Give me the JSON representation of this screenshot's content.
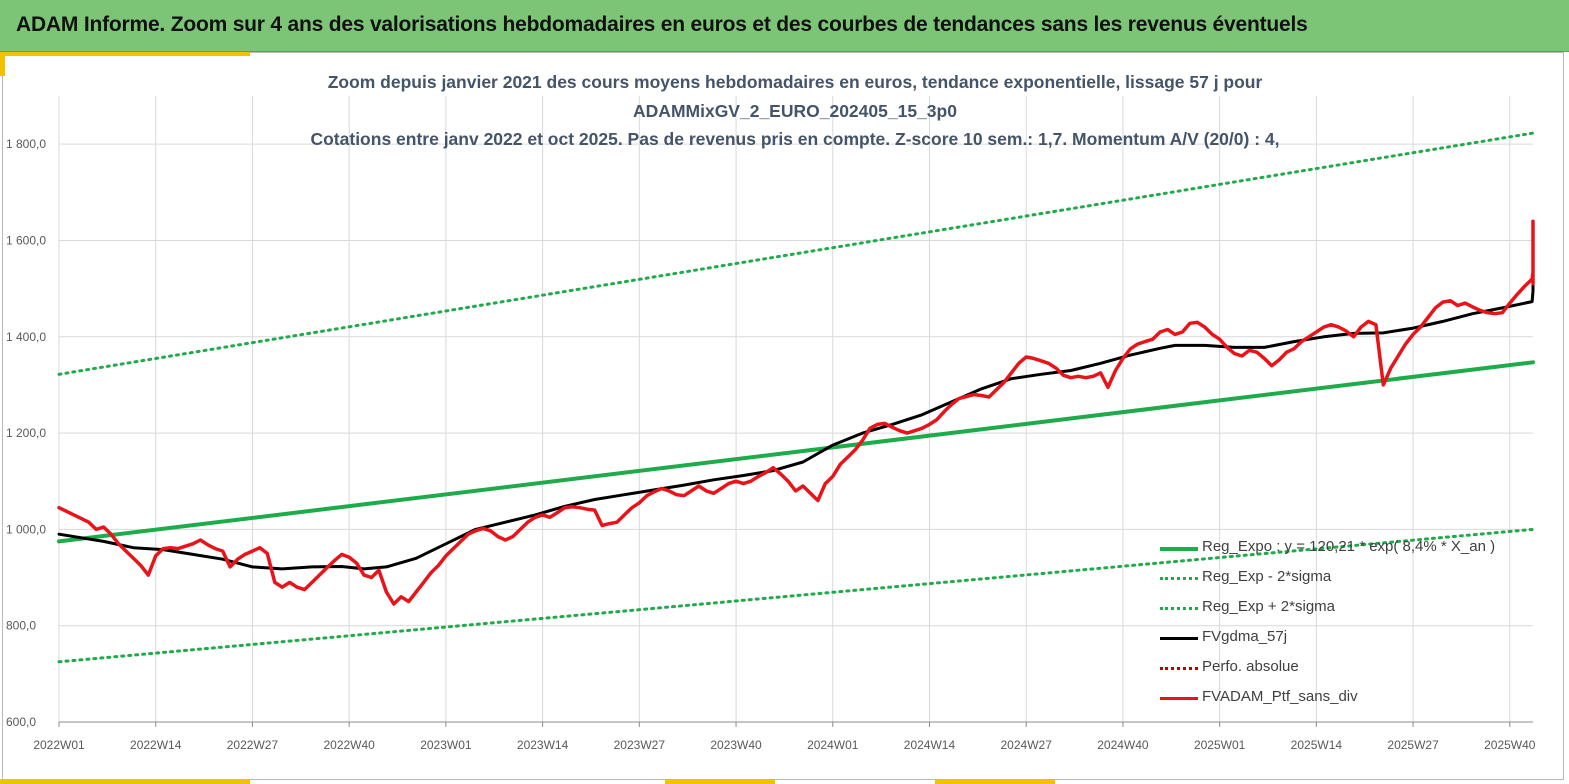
{
  "banner": {
    "title": "ADAM Informe. Zoom sur 4 ans des valorisations hebdomadaires en euros et des courbes de tendances sans les revenus éventuels"
  },
  "colors": {
    "banner_bg": "#7cc576",
    "accent": "#f2c200",
    "title_text": "#44546a",
    "reg_expo": "#1fab4a",
    "reg_sigma": "#1fab4a",
    "moving_average": "#000000",
    "perfo": "#c00000",
    "portfolio": "#e8141a",
    "grid": "#d9d9d9"
  },
  "chart_data": {
    "type": "line",
    "title_lines": [
      "Zoom depuis janvier 2021 des cours moyens hebdomadaires  en euros, tendance exponentielle, lissage 57 j pour",
      "ADAMMixGV_2_EURO_202405_15_3p0",
      "Cotations  entre janv 2022 et oct 2025. Pas de revenus pris en compte. Z-score 10 sem.: 1,7. Momentum A/V (20/0) : 4,"
    ],
    "x_tick_labels": [
      "2022W01",
      "2022W14",
      "2022W27",
      "2022W40",
      "2023W01",
      "2023W14",
      "2023W27",
      "2023W40",
      "2024W01",
      "2024W14",
      "2024W27",
      "2024W40",
      "2025W01",
      "2025W14",
      "2025W27",
      "2025W40"
    ],
    "y_tick_labels": [
      "600,0",
      "800,0",
      "1 000,0",
      "1 200,0",
      "1 400,0",
      "1 600,0",
      "1 800,0"
    ],
    "x_range_weeks": [
      0,
      200
    ],
    "y_range": [
      600,
      1900
    ],
    "grid": true,
    "legend_position": "bottom-right",
    "series": [
      {
        "name": "Reg_Expo : y = 120,21 * exp( 8,4% *  X_an )",
        "style": "solid",
        "color_key": "reg_expo",
        "points": [
          [
            0,
            975
          ],
          [
            200,
            1347
          ]
        ]
      },
      {
        "name": "Reg_Exp - 2*sigma",
        "style": "dotted",
        "color_key": "reg_sigma",
        "points": [
          [
            0,
            725
          ],
          [
            200,
            1000
          ]
        ]
      },
      {
        "name": "Reg_Exp + 2*sigma",
        "style": "dotted",
        "color_key": "reg_sigma",
        "points": [
          [
            0,
            1322
          ],
          [
            200,
            1823
          ]
        ]
      },
      {
        "name": "FVgdma_57j",
        "style": "solid",
        "color_key": "moving_average",
        "points": [
          [
            0,
            990
          ],
          [
            6,
            975
          ],
          [
            10,
            962
          ],
          [
            14,
            958
          ],
          [
            18,
            948
          ],
          [
            22,
            938
          ],
          [
            26,
            922
          ],
          [
            30,
            918
          ],
          [
            34,
            922
          ],
          [
            38,
            923
          ],
          [
            41,
            918
          ],
          [
            44,
            922
          ],
          [
            48,
            940
          ],
          [
            52,
            970
          ],
          [
            56,
            1000
          ],
          [
            60,
            1015
          ],
          [
            64,
            1030
          ],
          [
            68,
            1048
          ],
          [
            72,
            1062
          ],
          [
            76,
            1072
          ],
          [
            80,
            1082
          ],
          [
            84,
            1092
          ],
          [
            88,
            1103
          ],
          [
            92,
            1112
          ],
          [
            96,
            1122
          ],
          [
            100,
            1140
          ],
          [
            104,
            1175
          ],
          [
            108,
            1200
          ],
          [
            112,
            1218
          ],
          [
            116,
            1238
          ],
          [
            120,
            1265
          ],
          [
            124,
            1292
          ],
          [
            128,
            1313
          ],
          [
            132,
            1322
          ],
          [
            136,
            1330
          ],
          [
            140,
            1345
          ],
          [
            144,
            1362
          ],
          [
            148,
            1376
          ],
          [
            150,
            1382
          ],
          [
            154,
            1382
          ],
          [
            158,
            1378
          ],
          [
            162,
            1378
          ],
          [
            166,
            1390
          ],
          [
            170,
            1400
          ],
          [
            174,
            1407
          ],
          [
            178,
            1408
          ],
          [
            182,
            1418
          ],
          [
            186,
            1432
          ],
          [
            190,
            1448
          ],
          [
            194,
            1460
          ],
          [
            198,
            1473
          ],
          [
            202,
            1495
          ],
          [
            206,
            1522
          ],
          [
            210,
            1545
          ],
          [
            216,
            1595
          ]
        ]
      },
      {
        "name": "Perfo. absolue",
        "style": "dotted",
        "color_key": "perfo",
        "points": []
      },
      {
        "name": "FVADAM_Ptf_sans_div",
        "style": "solid",
        "color_key": "portfolio",
        "points": [
          [
            0,
            1045
          ],
          [
            2,
            1030
          ],
          [
            4,
            1015
          ],
          [
            5,
            1000
          ],
          [
            6,
            1005
          ],
          [
            7,
            990
          ],
          [
            8,
            970
          ],
          [
            9,
            955
          ],
          [
            10,
            940
          ],
          [
            11,
            925
          ],
          [
            12,
            905
          ],
          [
            13,
            945
          ],
          [
            14,
            960
          ],
          [
            15,
            962
          ],
          [
            16,
            960
          ],
          [
            17,
            965
          ],
          [
            18,
            970
          ],
          [
            19,
            978
          ],
          [
            20,
            968
          ],
          [
            21,
            960
          ],
          [
            22,
            955
          ],
          [
            23,
            922
          ],
          [
            24,
            938
          ],
          [
            25,
            948
          ],
          [
            26,
            955
          ],
          [
            27,
            962
          ],
          [
            28,
            950
          ],
          [
            29,
            890
          ],
          [
            30,
            880
          ],
          [
            31,
            890
          ],
          [
            32,
            880
          ],
          [
            33,
            875
          ],
          [
            34,
            890
          ],
          [
            35,
            905
          ],
          [
            36,
            920
          ],
          [
            37,
            935
          ],
          [
            38,
            948
          ],
          [
            39,
            942
          ],
          [
            40,
            930
          ],
          [
            41,
            905
          ],
          [
            42,
            900
          ],
          [
            43,
            915
          ],
          [
            44,
            870
          ],
          [
            45,
            845
          ],
          [
            46,
            860
          ],
          [
            47,
            850
          ],
          [
            48,
            870
          ],
          [
            49,
            890
          ],
          [
            50,
            910
          ],
          [
            51,
            925
          ],
          [
            52,
            945
          ],
          [
            53,
            960
          ],
          [
            54,
            975
          ],
          [
            55,
            990
          ],
          [
            56,
            997
          ],
          [
            57,
            1002
          ],
          [
            58,
            997
          ],
          [
            59,
            985
          ],
          [
            60,
            978
          ],
          [
            61,
            985
          ],
          [
            62,
            1000
          ],
          [
            63,
            1015
          ],
          [
            64,
            1025
          ],
          [
            65,
            1030
          ],
          [
            66,
            1025
          ],
          [
            67,
            1035
          ],
          [
            68,
            1045
          ],
          [
            69,
            1047
          ],
          [
            70,
            1045
          ],
          [
            71,
            1042
          ],
          [
            72,
            1040
          ],
          [
            73,
            1008
          ],
          [
            74,
            1012
          ],
          [
            75,
            1015
          ],
          [
            76,
            1030
          ],
          [
            77,
            1045
          ],
          [
            78,
            1055
          ],
          [
            79,
            1070
          ],
          [
            80,
            1078
          ],
          [
            81,
            1085
          ],
          [
            82,
            1080
          ],
          [
            83,
            1072
          ],
          [
            84,
            1070
          ],
          [
            85,
            1080
          ],
          [
            86,
            1090
          ],
          [
            87,
            1080
          ],
          [
            88,
            1075
          ],
          [
            89,
            1085
          ],
          [
            90,
            1095
          ],
          [
            91,
            1100
          ],
          [
            92,
            1095
          ],
          [
            93,
            1100
          ],
          [
            94,
            1110
          ],
          [
            95,
            1118
          ],
          [
            96,
            1128
          ],
          [
            97,
            1115
          ],
          [
            98,
            1100
          ],
          [
            99,
            1080
          ],
          [
            100,
            1090
          ],
          [
            101,
            1075
          ],
          [
            102,
            1060
          ],
          [
            103,
            1095
          ],
          [
            104,
            1110
          ],
          [
            105,
            1135
          ],
          [
            106,
            1150
          ],
          [
            107,
            1165
          ],
          [
            108,
            1185
          ],
          [
            109,
            1210
          ],
          [
            110,
            1218
          ],
          [
            111,
            1220
          ],
          [
            112,
            1212
          ],
          [
            113,
            1205
          ],
          [
            114,
            1200
          ],
          [
            115,
            1205
          ],
          [
            116,
            1210
          ],
          [
            117,
            1218
          ],
          [
            118,
            1228
          ],
          [
            119,
            1245
          ],
          [
            120,
            1260
          ],
          [
            121,
            1272
          ],
          [
            122,
            1276
          ],
          [
            123,
            1280
          ],
          [
            124,
            1278
          ],
          [
            125,
            1275
          ],
          [
            126,
            1290
          ],
          [
            127,
            1305
          ],
          [
            128,
            1325
          ],
          [
            129,
            1345
          ],
          [
            130,
            1358
          ],
          [
            131,
            1355
          ],
          [
            132,
            1350
          ],
          [
            133,
            1345
          ],
          [
            134,
            1335
          ],
          [
            135,
            1320
          ],
          [
            136,
            1315
          ],
          [
            137,
            1318
          ],
          [
            138,
            1315
          ],
          [
            139,
            1318
          ],
          [
            140,
            1325
          ],
          [
            141,
            1295
          ],
          [
            142,
            1330
          ],
          [
            143,
            1355
          ],
          [
            144,
            1375
          ],
          [
            145,
            1385
          ],
          [
            146,
            1390
          ],
          [
            147,
            1395
          ],
          [
            148,
            1410
          ],
          [
            149,
            1415
          ],
          [
            150,
            1405
          ],
          [
            151,
            1410
          ],
          [
            152,
            1428
          ],
          [
            153,
            1430
          ],
          [
            154,
            1420
          ],
          [
            155,
            1405
          ],
          [
            156,
            1395
          ],
          [
            157,
            1378
          ],
          [
            158,
            1365
          ],
          [
            159,
            1360
          ],
          [
            160,
            1372
          ],
          [
            161,
            1368
          ],
          [
            162,
            1355
          ],
          [
            163,
            1340
          ],
          [
            164,
            1352
          ],
          [
            165,
            1368
          ],
          [
            166,
            1375
          ],
          [
            167,
            1390
          ],
          [
            168,
            1400
          ],
          [
            169,
            1410
          ],
          [
            170,
            1420
          ],
          [
            171,
            1425
          ],
          [
            172,
            1420
          ],
          [
            173,
            1412
          ],
          [
            174,
            1400
          ],
          [
            175,
            1420
          ],
          [
            176,
            1432
          ],
          [
            177,
            1425
          ],
          [
            178,
            1300
          ],
          [
            179,
            1335
          ],
          [
            180,
            1360
          ],
          [
            181,
            1385
          ],
          [
            182,
            1405
          ],
          [
            183,
            1420
          ],
          [
            184,
            1440
          ],
          [
            185,
            1460
          ],
          [
            186,
            1472
          ],
          [
            187,
            1475
          ],
          [
            188,
            1465
          ],
          [
            189,
            1470
          ],
          [
            190,
            1462
          ],
          [
            191,
            1455
          ],
          [
            192,
            1450
          ],
          [
            193,
            1448
          ],
          [
            194,
            1450
          ],
          [
            195,
            1470
          ],
          [
            196,
            1488
          ],
          [
            197,
            1505
          ],
          [
            198,
            1520
          ],
          [
            199,
            1535
          ],
          [
            200,
            1548
          ],
          [
            201,
            1545
          ],
          [
            202,
            1530
          ],
          [
            203,
            1510
          ],
          [
            204,
            1525
          ],
          [
            205,
            1540
          ],
          [
            206,
            1548
          ],
          [
            207,
            1555
          ],
          [
            208,
            1560
          ],
          [
            209,
            1572
          ],
          [
            210,
            1585
          ],
          [
            211,
            1605
          ],
          [
            212,
            1630
          ],
          [
            213,
            1640
          ]
        ]
      }
    ]
  }
}
